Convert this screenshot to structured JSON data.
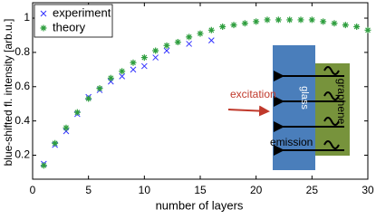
{
  "chart_data": {
    "type": "scatter",
    "xlabel": "number of layers",
    "ylabel": "blue-shifted fl. intensity [arb.u.]",
    "xlim": [
      0,
      30
    ],
    "ylim": [
      0.06,
      1.09
    ],
    "xticks": [
      0,
      5,
      10,
      15,
      20,
      25,
      30
    ],
    "yticks": [
      0.2,
      0.4,
      0.6,
      0.8,
      1
    ],
    "grid": false,
    "legend": "upper left",
    "series": [
      {
        "name": "experiment",
        "color": "#3333ff",
        "marker": "x",
        "x": [
          1,
          2,
          3,
          4,
          5,
          6,
          7,
          8,
          9,
          10,
          11,
          12,
          14,
          16
        ],
        "values": [
          0.15,
          0.26,
          0.34,
          0.44,
          0.54,
          0.58,
          0.63,
          0.66,
          0.7,
          0.72,
          0.77,
          0.81,
          0.85,
          0.87
        ]
      },
      {
        "name": "theory",
        "color": "#2e9e3e",
        "marker": "*",
        "x": [
          1,
          2,
          3,
          4,
          5,
          6,
          7,
          8,
          9,
          10,
          11,
          12,
          13,
          14,
          15,
          16,
          17,
          18,
          19,
          20,
          21,
          22,
          23,
          24,
          25,
          26,
          27,
          28,
          29,
          30
        ],
        "values": [
          0.14,
          0.27,
          0.36,
          0.45,
          0.53,
          0.59,
          0.65,
          0.69,
          0.74,
          0.77,
          0.81,
          0.84,
          0.86,
          0.89,
          0.91,
          0.93,
          0.95,
          0.96,
          0.97,
          0.98,
          0.99,
          0.99,
          0.99,
          0.99,
          0.99,
          0.98,
          0.97,
          0.96,
          0.95,
          0.93
        ]
      }
    ],
    "annotations": [
      "excitation",
      "glass",
      "graphene",
      "emission"
    ]
  }
}
